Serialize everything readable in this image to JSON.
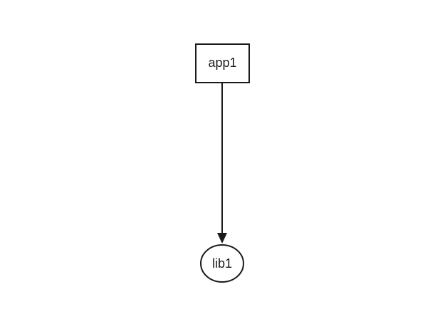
{
  "diagram": {
    "nodes": [
      {
        "id": "app1",
        "label": "app1",
        "shape": "rectangle"
      },
      {
        "id": "lib1",
        "label": "lib1",
        "shape": "ellipse"
      }
    ],
    "edges": [
      {
        "from": "app1",
        "to": "lib1",
        "arrow": "end"
      }
    ]
  }
}
